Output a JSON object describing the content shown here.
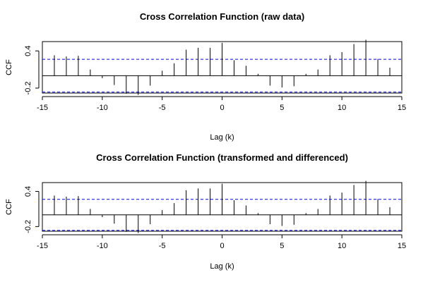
{
  "chart_data": [
    {
      "type": "bar",
      "title": "Cross Correlation Function (raw data)",
      "xlabel": "Lag (k)",
      "ylabel": "CCF",
      "xlim": [
        -15,
        15
      ],
      "ylim": [
        -0.28,
        0.55
      ],
      "xticks": [
        "-15",
        "-10",
        "-5",
        "0",
        "5",
        "10",
        "15"
      ],
      "yticks": [
        "-0.2",
        "0.4"
      ],
      "confidence_limits": [
        0.265,
        -0.265
      ],
      "confidence_color": "#0000ff",
      "x": [
        -14,
        -13,
        -12,
        -11,
        -10,
        -9,
        -8,
        -7,
        -6,
        -5,
        -4,
        -3,
        -2,
        -1,
        0,
        1,
        2,
        3,
        4,
        5,
        6,
        7,
        8,
        9,
        10,
        11,
        12,
        13,
        14
      ],
      "values": [
        0.33,
        0.31,
        0.32,
        0.1,
        -0.04,
        -0.15,
        -0.29,
        -0.31,
        -0.16,
        0.08,
        0.2,
        0.42,
        0.45,
        0.45,
        0.53,
        0.25,
        0.16,
        0.03,
        -0.16,
        -0.19,
        -0.17,
        0.03,
        0.1,
        0.33,
        0.38,
        0.51,
        0.58,
        0.27,
        0.13
      ]
    },
    {
      "type": "bar",
      "title": "Cross Correlation Function (transformed and differenced)",
      "xlabel": "Lag (k)",
      "ylabel": "CCF",
      "xlim": [
        -15,
        15
      ],
      "ylim": [
        -0.28,
        0.55
      ],
      "xticks": [
        "-15",
        "-10",
        "-5",
        "0",
        "5",
        "10",
        "15"
      ],
      "yticks": [
        "-0.2",
        "0.4"
      ],
      "confidence_limits": [
        0.265,
        -0.265
      ],
      "confidence_color": "#0000ff",
      "x": [
        -14,
        -13,
        -12,
        -11,
        -10,
        -9,
        -8,
        -7,
        -6,
        -5,
        -4,
        -3,
        -2,
        -1,
        0,
        1,
        2,
        3,
        4,
        5,
        6,
        7,
        8,
        9,
        10,
        11,
        12,
        13,
        14
      ],
      "values": [
        0.33,
        0.31,
        0.32,
        0.1,
        -0.04,
        -0.15,
        -0.29,
        -0.31,
        -0.16,
        0.08,
        0.2,
        0.42,
        0.45,
        0.45,
        0.53,
        0.25,
        0.16,
        0.03,
        -0.16,
        -0.19,
        -0.17,
        0.03,
        0.1,
        0.33,
        0.38,
        0.51,
        0.58,
        0.27,
        0.13
      ]
    }
  ]
}
